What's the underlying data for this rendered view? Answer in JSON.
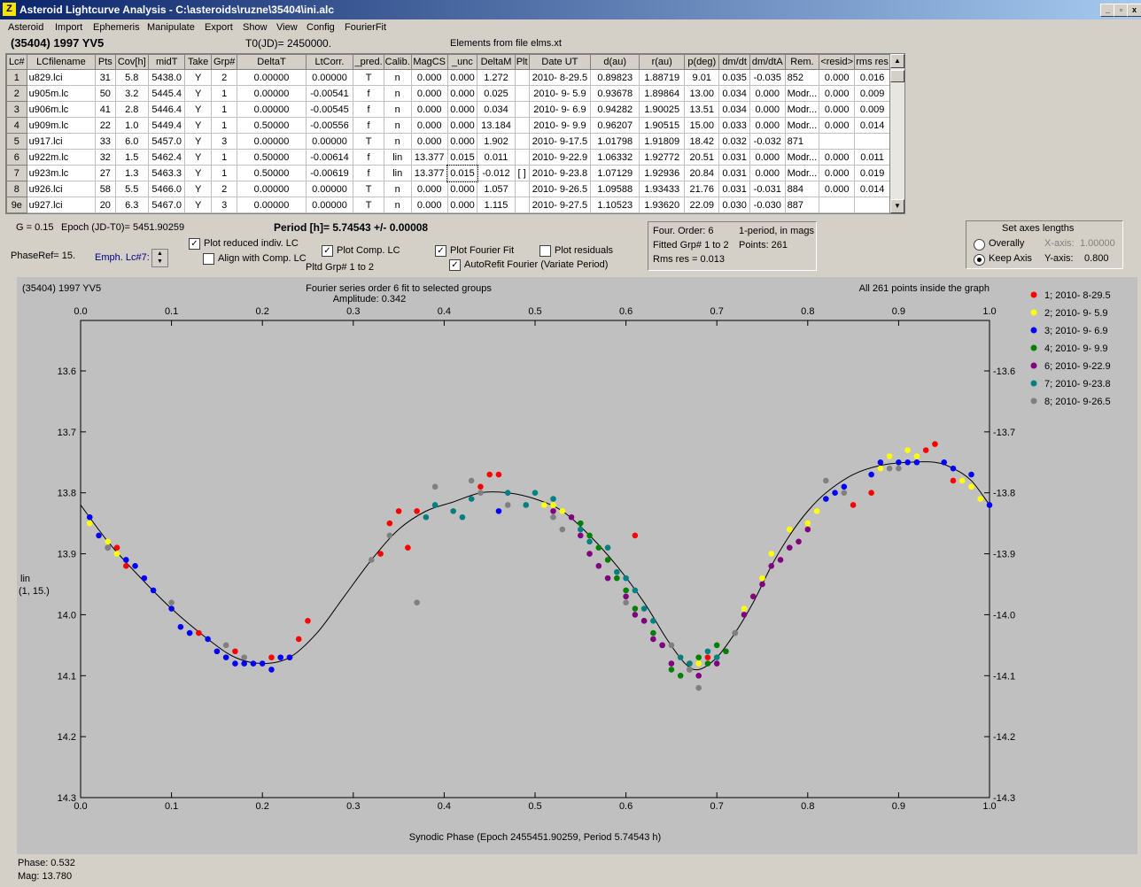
{
  "window": {
    "title": "Asteroid Lightcurve Analysis - C:\\asteroids\\ruzne\\35404\\ini.alc",
    "app_icon": "Z"
  },
  "menu": [
    "Asteroid",
    "Import",
    "Ephemeris",
    "Manipulate",
    "Export",
    "Show",
    "View",
    "Config",
    "FourierFit"
  ],
  "header": {
    "asteroid": "(35404) 1997 YV5",
    "t0": "T0(JD)= 2450000.",
    "elements": "Elements from file elms.xt"
  },
  "table": {
    "columns": [
      "Lc#",
      "LCfilename",
      "Pts",
      "Cov[h]",
      "midT",
      "Take",
      "Grp#",
      "DeltaT",
      "LtCorr.",
      "_pred.",
      "Calib.",
      "MagCS",
      "_unc",
      "DeltaM",
      "Plt",
      "Date UT",
      "d(au)",
      "r(au)",
      "p(deg)",
      "dm/dt",
      "dm/dtA",
      "Rem.",
      "<resid>",
      "rms res"
    ],
    "rows": [
      [
        "1",
        "u829.lci",
        "31",
        "5.8",
        "5438.0",
        "Y",
        "2",
        "0.00000",
        "0.00000",
        "T",
        "n",
        "0.000",
        "0.000",
        "1.272",
        "",
        "2010- 8-29.5",
        "0.89823",
        "1.88719",
        "9.01",
        "0.035",
        "-0.035",
        "852",
        "0.000",
        "0.016"
      ],
      [
        "2",
        "u905m.lc",
        "50",
        "3.2",
        "5445.4",
        "Y",
        "1",
        "0.00000",
        "-0.00541",
        "f",
        "n",
        "0.000",
        "0.000",
        "0.025",
        "",
        "2010- 9- 5.9",
        "0.93678",
        "1.89864",
        "13.00",
        "0.034",
        "0.000",
        "Modr...",
        "0.000",
        "0.009"
      ],
      [
        "3",
        "u906m.lc",
        "41",
        "2.8",
        "5446.4",
        "Y",
        "1",
        "0.00000",
        "-0.00545",
        "f",
        "n",
        "0.000",
        "0.000",
        "0.034",
        "",
        "2010- 9- 6.9",
        "0.94282",
        "1.90025",
        "13.51",
        "0.034",
        "0.000",
        "Modr...",
        "0.000",
        "0.009"
      ],
      [
        "4",
        "u909m.lc",
        "22",
        "1.0",
        "5449.4",
        "Y",
        "1",
        "0.50000",
        "-0.00556",
        "f",
        "n",
        "0.000",
        "0.000",
        "13.184",
        "",
        "2010- 9- 9.9",
        "0.96207",
        "1.90515",
        "15.00",
        "0.033",
        "0.000",
        "Modr...",
        "0.000",
        "0.014"
      ],
      [
        "5",
        "u917.lci",
        "33",
        "6.0",
        "5457.0",
        "Y",
        "3",
        "0.00000",
        "0.00000",
        "T",
        "n",
        "0.000",
        "0.000",
        "1.902",
        "",
        "2010- 9-17.5",
        "1.01798",
        "1.91809",
        "18.42",
        "0.032",
        "-0.032",
        "871",
        "",
        ""
      ],
      [
        "6",
        "u922m.lc",
        "32",
        "1.5",
        "5462.4",
        "Y",
        "1",
        "0.50000",
        "-0.00614",
        "f",
        "lin",
        "13.377",
        "0.015",
        "0.011",
        "",
        "2010- 9-22.9",
        "1.06332",
        "1.92772",
        "20.51",
        "0.031",
        "0.000",
        "Modr...",
        "0.000",
        "0.011"
      ],
      [
        "7",
        "u923m.lc",
        "27",
        "1.3",
        "5463.3",
        "Y",
        "1",
        "0.50000",
        "-0.00619",
        "f",
        "lin",
        "13.377",
        "0.015",
        "-0.012",
        "[ ]",
        "2010- 9-23.8",
        "1.07129",
        "1.92936",
        "20.84",
        "0.031",
        "0.000",
        "Modr...",
        "0.000",
        "0.019"
      ],
      [
        "8",
        "u926.lci",
        "58",
        "5.5",
        "5466.0",
        "Y",
        "2",
        "0.00000",
        "0.00000",
        "T",
        "n",
        "0.000",
        "0.000",
        "1.057",
        "",
        "2010- 9-26.5",
        "1.09588",
        "1.93433",
        "21.76",
        "0.031",
        "-0.031",
        "884",
        "0.000",
        "0.014"
      ],
      [
        "9e",
        "u927.lci",
        "20",
        "6.3",
        "5467.0",
        "Y",
        "3",
        "0.00000",
        "0.00000",
        "T",
        "n",
        "0.000",
        "0.000",
        "1.115",
        "",
        "2010- 9-27.5",
        "1.10523",
        "1.93620",
        "22.09",
        "0.030",
        "-0.030",
        "887",
        "",
        ""
      ]
    ]
  },
  "controls": {
    "g": "G = 0.15",
    "epoch": "Epoch (JD-T0)= 5451.90259",
    "period": "Period [h]= 5.74543 +/- 0.00008",
    "phaseref": "PhaseRef= 15.",
    "emph": "Emph. Lc#7:",
    "plot_reduced": "Plot reduced indiv. LC",
    "align": "Align with Comp. LC",
    "plot_comp": "Plot Comp. LC",
    "pltd_grp": "Pltd Grp#  1   to    2",
    "plot_fourier": "Plot Fourier Fit",
    "autorefit": "AutoRefit Fourier (Variate Period)",
    "plot_residuals": "Plot residuals",
    "four_order": "Four. Order:  6",
    "one_period": "1-period, in mags",
    "fitted": "Fitted Grp# 1 to 2",
    "points": "Points: 261",
    "rms": "Rms res     = 0.013",
    "axes_title": "Set axes lengths",
    "overally": "Overally",
    "keep_axis": "Keep Axis",
    "xaxis_label": "X-axis:",
    "xaxis_val": "1.00000",
    "yaxis_label": "Y-axis:",
    "yaxis_val": "0.800"
  },
  "chart_data": {
    "type": "scatter",
    "title_left": "(35404) 1997 YV5",
    "title_center": "Fourier series order 6 fit to selected groups",
    "amplitude": "Amplitude: 0.342",
    "title_right": "All 261 points inside the graph",
    "xlabel": "Synodic Phase (Epoch 2455451.90259, Period 5.74543 h)",
    "ylabel": "lin",
    "ylabel2": "(1, 15.)",
    "xlim": [
      0.0,
      1.0
    ],
    "ylim": [
      13.52,
      14.32
    ],
    "y_inverted": true,
    "xticks": [
      "0.0",
      "0.1",
      "0.2",
      "0.3",
      "0.4",
      "0.5",
      "0.6",
      "0.7",
      "0.8",
      "0.9",
      "1.0"
    ],
    "yticks": [
      "13.6",
      "13.7",
      "13.8",
      "13.9",
      "14.0",
      "14.1",
      "14.2",
      "14.3"
    ],
    "fit_curve": [
      [
        0,
        13.82
      ],
      [
        0.03,
        13.88
      ],
      [
        0.06,
        13.93
      ],
      [
        0.1,
        13.99
      ],
      [
        0.14,
        14.04
      ],
      [
        0.17,
        14.07
      ],
      [
        0.2,
        14.08
      ],
      [
        0.23,
        14.07
      ],
      [
        0.26,
        14.03
      ],
      [
        0.29,
        13.97
      ],
      [
        0.32,
        13.91
      ],
      [
        0.35,
        13.86
      ],
      [
        0.38,
        13.83
      ],
      [
        0.41,
        13.815
      ],
      [
        0.44,
        13.8
      ],
      [
        0.47,
        13.8
      ],
      [
        0.5,
        13.81
      ],
      [
        0.53,
        13.83
      ],
      [
        0.56,
        13.87
      ],
      [
        0.59,
        13.92
      ],
      [
        0.62,
        13.98
      ],
      [
        0.645,
        14.04
      ],
      [
        0.665,
        14.08
      ],
      [
        0.68,
        14.09
      ],
      [
        0.7,
        14.07
      ],
      [
        0.72,
        14.03
      ],
      [
        0.74,
        13.98
      ],
      [
        0.76,
        13.92
      ],
      [
        0.78,
        13.87
      ],
      [
        0.8,
        13.83
      ],
      [
        0.82,
        13.8
      ],
      [
        0.85,
        13.77
      ],
      [
        0.88,
        13.755
      ],
      [
        0.91,
        13.75
      ],
      [
        0.94,
        13.75
      ],
      [
        0.96,
        13.76
      ],
      [
        0.98,
        13.78
      ],
      [
        1.0,
        13.82
      ]
    ],
    "series": [
      {
        "name": "1; 2010- 8-29.5",
        "color": "#ff0000",
        "points": [
          [
            0.04,
            13.89
          ],
          [
            0.05,
            13.92
          ],
          [
            0.13,
            14.03
          ],
          [
            0.17,
            14.06
          ],
          [
            0.21,
            14.07
          ],
          [
            0.23,
            14.07
          ],
          [
            0.24,
            14.04
          ],
          [
            0.25,
            14.01
          ],
          [
            0.33,
            13.9
          ],
          [
            0.34,
            13.85
          ],
          [
            0.35,
            13.83
          ],
          [
            0.36,
            13.89
          ],
          [
            0.37,
            13.83
          ],
          [
            0.44,
            13.79
          ],
          [
            0.45,
            13.77
          ],
          [
            0.46,
            13.77
          ],
          [
            0.61,
            13.87
          ],
          [
            0.69,
            14.07
          ],
          [
            0.85,
            13.82
          ],
          [
            0.87,
            13.8
          ],
          [
            0.93,
            13.73
          ],
          [
            0.94,
            13.72
          ],
          [
            0.96,
            13.78
          ]
        ]
      },
      {
        "name": "2; 2010- 9- 5.9",
        "color": "#ffff00",
        "points": [
          [
            0.01,
            13.85
          ],
          [
            0.02,
            13.87
          ],
          [
            0.03,
            13.88
          ],
          [
            0.04,
            13.9
          ],
          [
            0.51,
            13.82
          ],
          [
            0.52,
            13.82
          ],
          [
            0.53,
            13.83
          ],
          [
            0.66,
            14.07
          ],
          [
            0.67,
            14.09
          ],
          [
            0.68,
            14.08
          ],
          [
            0.72,
            14.03
          ],
          [
            0.73,
            13.99
          ],
          [
            0.74,
            13.97
          ],
          [
            0.75,
            13.94
          ],
          [
            0.76,
            13.9
          ],
          [
            0.78,
            13.86
          ],
          [
            0.8,
            13.85
          ],
          [
            0.81,
            13.83
          ],
          [
            0.88,
            13.76
          ],
          [
            0.89,
            13.74
          ],
          [
            0.9,
            13.75
          ],
          [
            0.91,
            13.73
          ],
          [
            0.92,
            13.74
          ],
          [
            0.97,
            13.78
          ],
          [
            0.98,
            13.79
          ],
          [
            0.99,
            13.81
          ]
        ]
      },
      {
        "name": "3; 2010- 9- 6.9",
        "color": "#0000ff",
        "points": [
          [
            0.01,
            13.84
          ],
          [
            0.02,
            13.87
          ],
          [
            0.03,
            13.89
          ],
          [
            0.05,
            13.91
          ],
          [
            0.06,
            13.92
          ],
          [
            0.07,
            13.94
          ],
          [
            0.08,
            13.96
          ],
          [
            0.1,
            13.99
          ],
          [
            0.11,
            14.02
          ],
          [
            0.12,
            14.03
          ],
          [
            0.14,
            14.04
          ],
          [
            0.15,
            14.06
          ],
          [
            0.16,
            14.07
          ],
          [
            0.17,
            14.08
          ],
          [
            0.18,
            14.08
          ],
          [
            0.19,
            14.08
          ],
          [
            0.2,
            14.08
          ],
          [
            0.21,
            14.09
          ],
          [
            0.22,
            14.07
          ],
          [
            0.23,
            14.07
          ],
          [
            0.46,
            13.83
          ],
          [
            0.82,
            13.81
          ],
          [
            0.83,
            13.8
          ],
          [
            0.84,
            13.79
          ],
          [
            0.87,
            13.77
          ],
          [
            0.88,
            13.75
          ],
          [
            0.9,
            13.75
          ],
          [
            0.91,
            13.75
          ],
          [
            0.92,
            13.75
          ],
          [
            0.95,
            13.75
          ],
          [
            0.96,
            13.76
          ],
          [
            0.98,
            13.77
          ],
          [
            1.0,
            13.82
          ]
        ]
      },
      {
        "name": "4; 2010- 9- 9.9",
        "color": "#008000",
        "points": [
          [
            0.55,
            13.85
          ],
          [
            0.56,
            13.87
          ],
          [
            0.57,
            13.89
          ],
          [
            0.58,
            13.91
          ],
          [
            0.59,
            13.94
          ],
          [
            0.6,
            13.96
          ],
          [
            0.61,
            13.99
          ],
          [
            0.62,
            14.01
          ],
          [
            0.63,
            14.03
          ],
          [
            0.64,
            14.05
          ],
          [
            0.65,
            14.09
          ],
          [
            0.66,
            14.1
          ],
          [
            0.67,
            14.08
          ],
          [
            0.68,
            14.07
          ],
          [
            0.69,
            14.08
          ],
          [
            0.7,
            14.05
          ],
          [
            0.71,
            14.06
          ]
        ]
      },
      {
        "name": "6; 2010- 9-22.9",
        "color": "#800080",
        "points": [
          [
            0.52,
            13.83
          ],
          [
            0.54,
            13.84
          ],
          [
            0.55,
            13.87
          ],
          [
            0.56,
            13.9
          ],
          [
            0.57,
            13.92
          ],
          [
            0.58,
            13.94
          ],
          [
            0.6,
            13.97
          ],
          [
            0.61,
            14.0
          ],
          [
            0.62,
            14.01
          ],
          [
            0.63,
            14.04
          ],
          [
            0.64,
            14.05
          ],
          [
            0.65,
            14.08
          ],
          [
            0.67,
            14.09
          ],
          [
            0.68,
            14.1
          ],
          [
            0.7,
            14.08
          ],
          [
            0.72,
            14.03
          ],
          [
            0.73,
            14.0
          ],
          [
            0.74,
            13.97
          ],
          [
            0.75,
            13.95
          ],
          [
            0.76,
            13.92
          ],
          [
            0.77,
            13.91
          ],
          [
            0.78,
            13.89
          ],
          [
            0.79,
            13.88
          ],
          [
            0.8,
            13.86
          ]
        ]
      },
      {
        "name": "7; 2010- 9-23.8",
        "color": "#008080",
        "points": [
          [
            0.38,
            13.84
          ],
          [
            0.39,
            13.82
          ],
          [
            0.41,
            13.83
          ],
          [
            0.42,
            13.84
          ],
          [
            0.43,
            13.81
          ],
          [
            0.47,
            13.8
          ],
          [
            0.49,
            13.82
          ],
          [
            0.5,
            13.8
          ],
          [
            0.52,
            13.81
          ],
          [
            0.55,
            13.86
          ],
          [
            0.56,
            13.88
          ],
          [
            0.58,
            13.89
          ],
          [
            0.59,
            13.93
          ],
          [
            0.6,
            13.94
          ],
          [
            0.61,
            13.96
          ],
          [
            0.62,
            13.99
          ],
          [
            0.63,
            14.01
          ],
          [
            0.66,
            14.07
          ],
          [
            0.67,
            14.08
          ],
          [
            0.69,
            14.06
          ],
          [
            0.7,
            14.07
          ]
        ]
      },
      {
        "name": "8; 2010- 9-26.5",
        "color": "#808080",
        "points": [
          [
            0.03,
            13.89
          ],
          [
            0.1,
            13.98
          ],
          [
            0.16,
            14.05
          ],
          [
            0.18,
            14.07
          ],
          [
            0.32,
            13.91
          ],
          [
            0.34,
            13.87
          ],
          [
            0.37,
            13.98
          ],
          [
            0.39,
            13.79
          ],
          [
            0.43,
            13.78
          ],
          [
            0.44,
            13.8
          ],
          [
            0.47,
            13.82
          ],
          [
            0.52,
            13.84
          ],
          [
            0.53,
            13.86
          ],
          [
            0.6,
            13.98
          ],
          [
            0.65,
            14.05
          ],
          [
            0.67,
            14.09
          ],
          [
            0.68,
            14.12
          ],
          [
            0.72,
            14.03
          ],
          [
            0.82,
            13.78
          ],
          [
            0.84,
            13.8
          ],
          [
            0.89,
            13.76
          ],
          [
            0.9,
            13.76
          ]
        ]
      }
    ]
  },
  "status": {
    "phase": "Phase:  0.532",
    "mag": "Mag:   13.780"
  }
}
